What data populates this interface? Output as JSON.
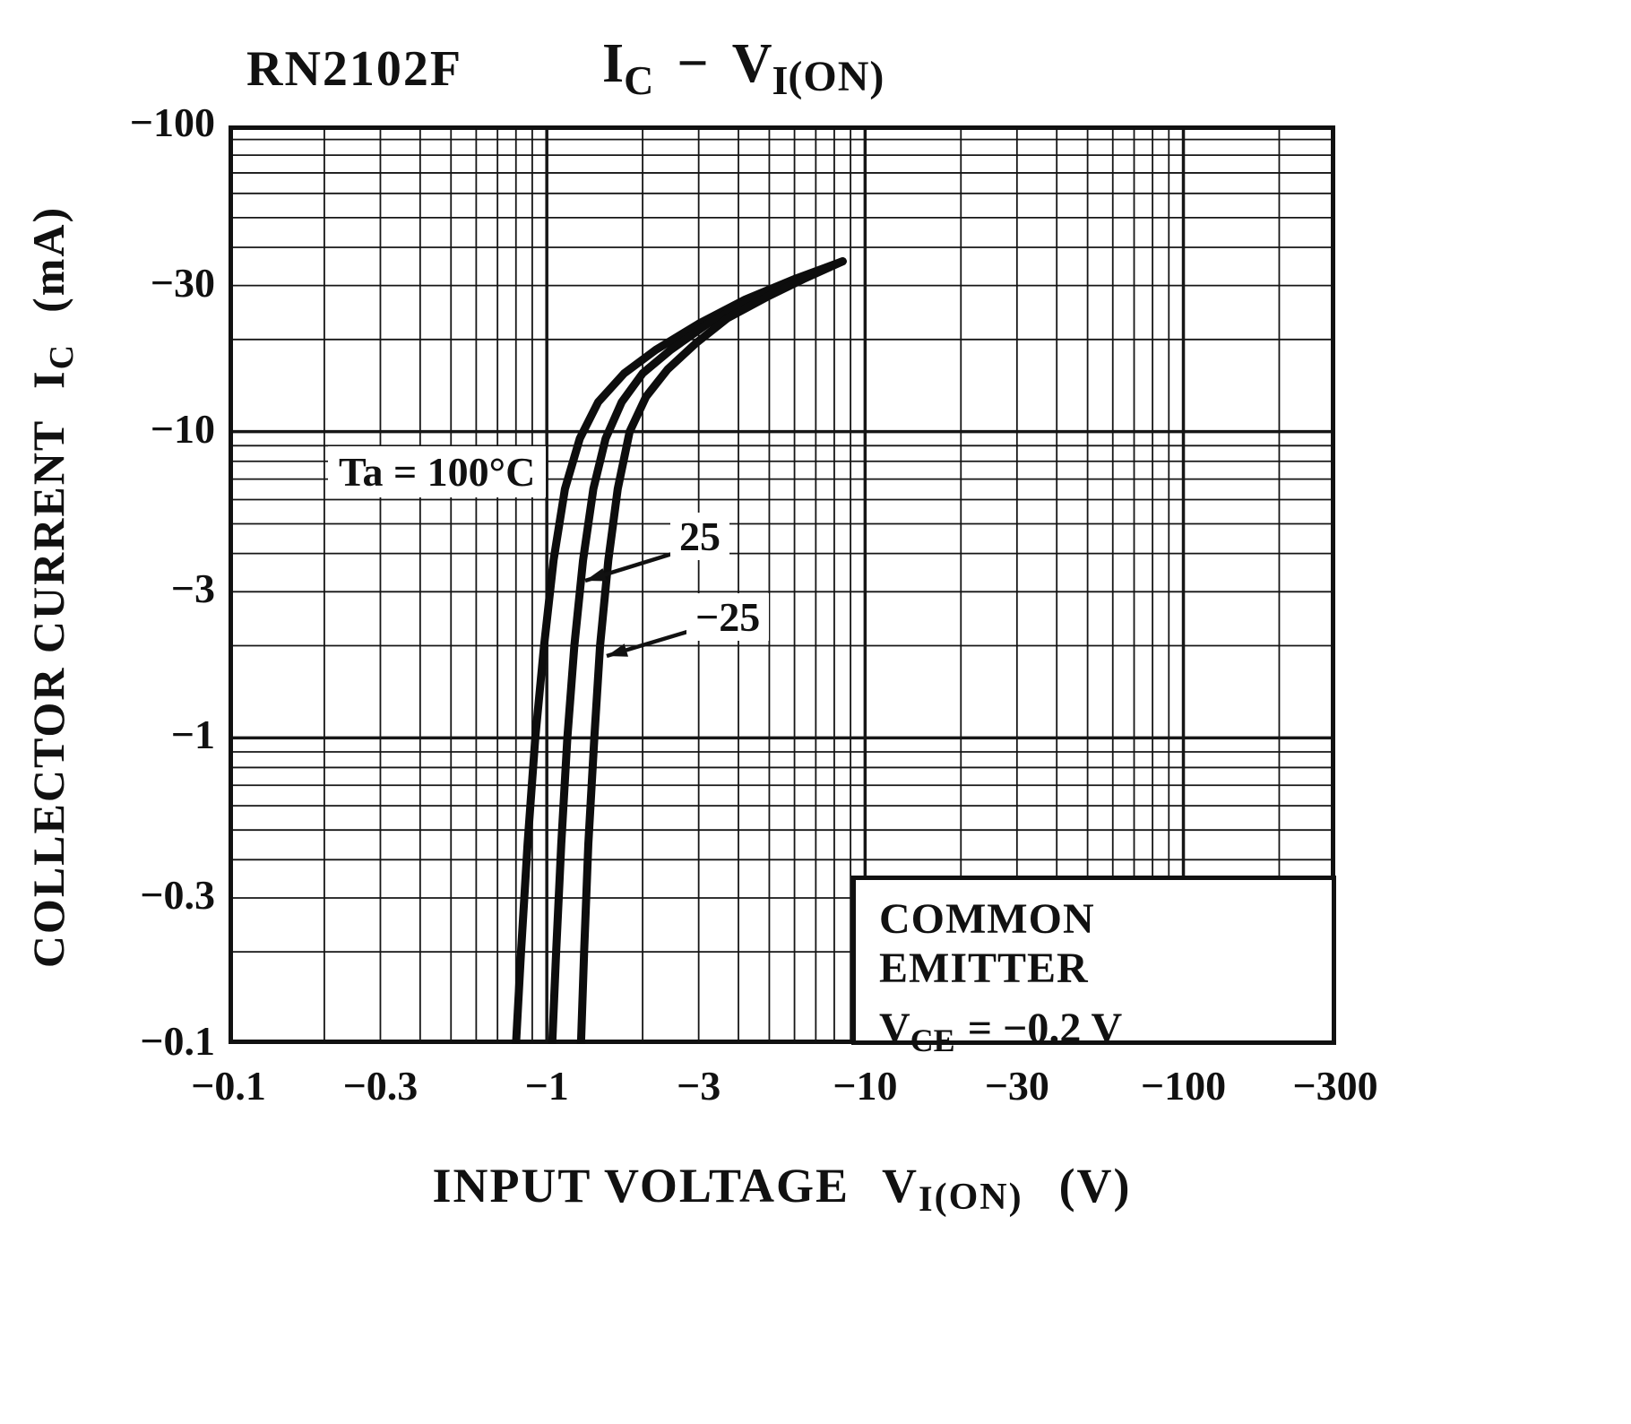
{
  "header": {
    "device": "RN2102F",
    "title_sym1": "I",
    "title_sub1": "C",
    "title_dash": "−",
    "title_sym2": "V",
    "title_sub2": "I",
    "title_sub2b": "(ON)"
  },
  "y_axis_label": {
    "text": "COLLECTOR CURRENT",
    "sym": "I",
    "sub": "C",
    "unit": "(mA)"
  },
  "x_axis_label": {
    "text": "INPUT VOLTAGE",
    "sym": "V",
    "sub": "I",
    "sub2": "(ON)",
    "unit": "(V)"
  },
  "inset": {
    "line1": "COMMON EMITTER",
    "sym": "V",
    "sub": "CE",
    "rest": "= −0.2 V"
  },
  "annotations": {
    "ta": "Ta = 100°C",
    "curve25": "25",
    "curve_m25": "−25"
  },
  "chart_data": {
    "type": "line",
    "title": "RN2102F  IC − VI(ON)",
    "xlabel": "INPUT VOLTAGE VI(ON) (V)",
    "ylabel": "COLLECTOR CURRENT IC (mA)",
    "conditions": "COMMON EMITTER, VCE = −0.2 V",
    "x_scale": "log",
    "y_scale": "log",
    "polarity_note": "Both axes show negative (PNP) values; magnitudes plotted on log-log grid",
    "x_range": [
      0.1,
      300
    ],
    "y_range": [
      0.1,
      100
    ],
    "grid": "full log-log grid, minor lines 2-9 each decade",
    "x_ticks": [
      {
        "v": 0.1,
        "label": "−0.1"
      },
      {
        "v": 0.3,
        "label": "−0.3"
      },
      {
        "v": 1,
        "label": "−1"
      },
      {
        "v": 3,
        "label": "−3"
      },
      {
        "v": 10,
        "label": "−10"
      },
      {
        "v": 30,
        "label": "−30"
      },
      {
        "v": 100,
        "label": "−100"
      },
      {
        "v": 300,
        "label": "−300"
      }
    ],
    "y_ticks": [
      {
        "v": 0.1,
        "label": "−0.1"
      },
      {
        "v": 0.3,
        "label": "−0.3"
      },
      {
        "v": 1,
        "label": "−1"
      },
      {
        "v": 3,
        "label": "−3"
      },
      {
        "v": 10,
        "label": "−10"
      },
      {
        "v": 30,
        "label": "−30"
      },
      {
        "v": 100,
        "label": "−100"
      }
    ],
    "series": [
      {
        "name": "Ta = 100°C",
        "points_abs_V_vs_abs_mA": [
          [
            0.8,
            0.1
          ],
          [
            0.83,
            0.2
          ],
          [
            0.87,
            0.45
          ],
          [
            0.92,
            1.0
          ],
          [
            0.98,
            2.0
          ],
          [
            1.05,
            3.8
          ],
          [
            1.14,
            6.5
          ],
          [
            1.27,
            9.5
          ],
          [
            1.45,
            12.5
          ],
          [
            1.75,
            15.5
          ],
          [
            2.2,
            18.5
          ],
          [
            3.0,
            22.5
          ],
          [
            4.2,
            27
          ],
          [
            6.0,
            31.5
          ],
          [
            8.5,
            36
          ]
        ]
      },
      {
        "name": "Ta = 25°C",
        "points_abs_V_vs_abs_mA": [
          [
            1.04,
            0.1
          ],
          [
            1.07,
            0.2
          ],
          [
            1.11,
            0.45
          ],
          [
            1.16,
            1.0
          ],
          [
            1.22,
            2.0
          ],
          [
            1.3,
            3.8
          ],
          [
            1.4,
            6.5
          ],
          [
            1.53,
            9.5
          ],
          [
            1.72,
            12.5
          ],
          [
            2.0,
            15.5
          ],
          [
            2.45,
            18.5
          ],
          [
            3.2,
            22.5
          ],
          [
            4.4,
            27
          ],
          [
            6.1,
            31.5
          ],
          [
            8.5,
            36
          ]
        ]
      },
      {
        "name": "Ta = −25°C",
        "points_abs_V_vs_abs_mA": [
          [
            1.28,
            0.1
          ],
          [
            1.31,
            0.2
          ],
          [
            1.35,
            0.45
          ],
          [
            1.41,
            1.0
          ],
          [
            1.47,
            2.0
          ],
          [
            1.56,
            3.8
          ],
          [
            1.67,
            6.5
          ],
          [
            1.82,
            10
          ],
          [
            2.05,
            13
          ],
          [
            2.4,
            16
          ],
          [
            2.95,
            19.5
          ],
          [
            3.7,
            23.5
          ],
          [
            4.9,
            27.5
          ],
          [
            6.4,
            31.5
          ],
          [
            8.5,
            36
          ]
        ]
      }
    ]
  }
}
